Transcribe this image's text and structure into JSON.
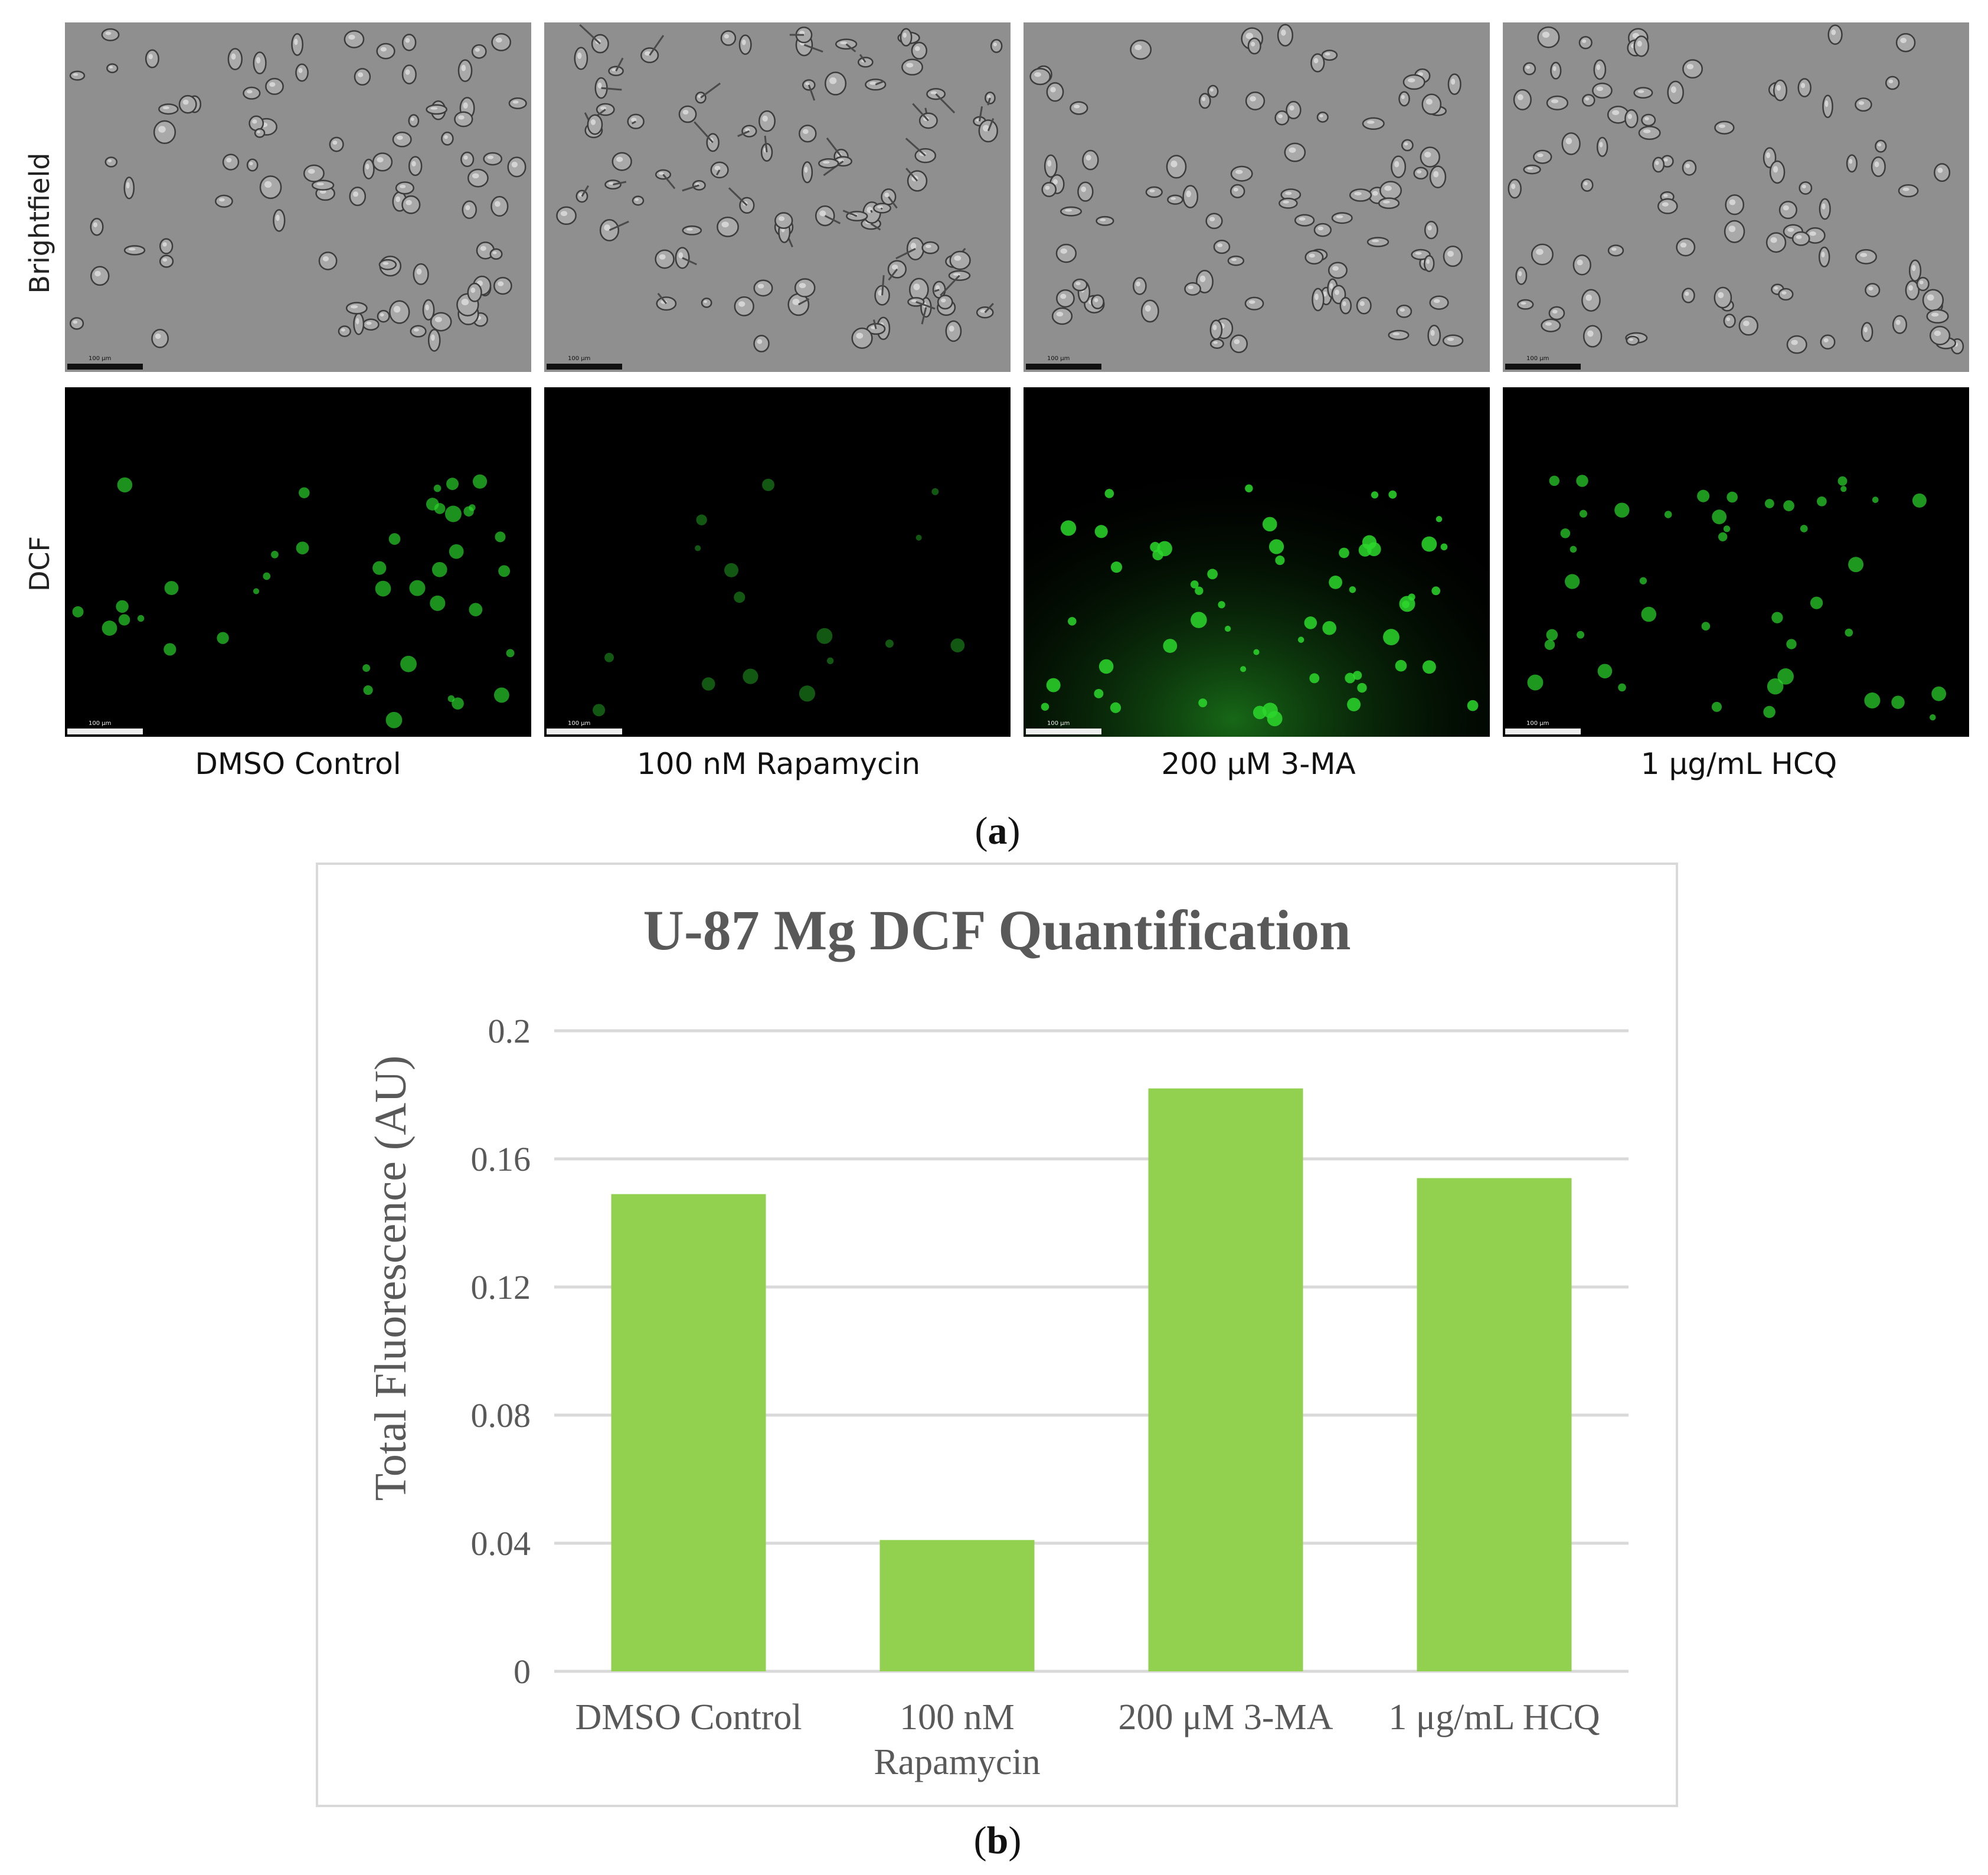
{
  "panel_a": {
    "row_labels": [
      "Brightfield",
      "DCF"
    ],
    "column_labels": [
      "DMSO Control",
      "100 nM Rapamycin",
      "200 μM 3-MA",
      "1 μg/mL HCQ"
    ],
    "scale_bar_text": "100 μm",
    "letter": "a",
    "dcf_intensity": [
      0.55,
      0.1,
      0.85,
      0.6
    ],
    "colors": {
      "brightfield_bg": "#8f8f8f",
      "fluor_bg": "#000000",
      "fluor_cell": "#2bd62b"
    }
  },
  "panel_b": {
    "letter": "b"
  },
  "chart_data": {
    "type": "bar",
    "title": "U-87 Mg DCF Quantification",
    "xlabel": "",
    "ylabel": "Total Fluorescence (AU)",
    "categories": [
      "DMSO Control",
      "100 nM Rapamycin",
      "200 μM 3-MA",
      "1 μg/mL HCQ"
    ],
    "category_lines": [
      [
        "DMSO Control"
      ],
      [
        "100 nM",
        "Rapamycin"
      ],
      [
        "200 μM 3-MA"
      ],
      [
        "1 μg/mL HCQ"
      ]
    ],
    "values": [
      0.149,
      0.041,
      0.182,
      0.154
    ],
    "ylim": [
      0,
      0.2
    ],
    "yticks": [
      "0",
      "0.04",
      "0.08",
      "0.12",
      "0.16",
      "0.2"
    ],
    "grid": true,
    "bar_color": "#92d050",
    "grid_color": "#d9d9d9"
  }
}
